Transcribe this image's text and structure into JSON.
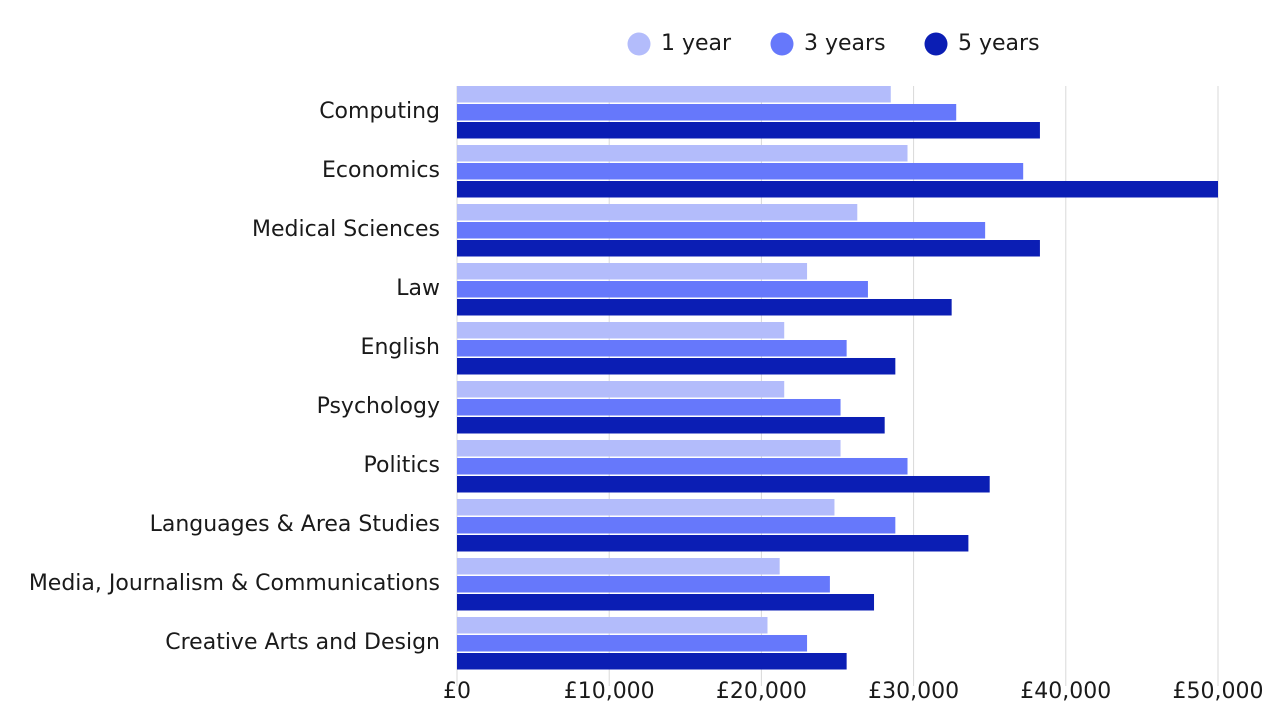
{
  "chart_data": {
    "type": "bar",
    "orientation": "horizontal",
    "title": "",
    "xlabel": "",
    "ylabel": "",
    "categories": [
      "Computing",
      "Economics",
      "Medical Sciences",
      "Law",
      "English",
      "Psychology",
      "Politics",
      "Languages & Area Studies",
      "Media, Journalism & Communications",
      "Creative Arts and Design"
    ],
    "series": [
      {
        "name": "1 year",
        "color": "#b3bcfb",
        "values": [
          28500,
          29600,
          26300,
          23000,
          21500,
          21500,
          25200,
          24800,
          21200,
          20400
        ]
      },
      {
        "name": "3 years",
        "color": "#6678fb",
        "values": [
          32800,
          37200,
          34700,
          27000,
          25600,
          25200,
          29600,
          28800,
          24500,
          23000
        ]
      },
      {
        "name": "5 years",
        "color": "#0b1eb4",
        "values": [
          38300,
          50000,
          38300,
          32500,
          28800,
          28100,
          35000,
          33600,
          27400,
          25600
        ]
      }
    ],
    "xlim": [
      0,
      50000
    ],
    "xticks": [
      0,
      10000,
      20000,
      30000,
      40000,
      50000
    ],
    "xtick_labels": [
      "£0",
      "£10,000",
      "£20,000",
      "£30,000",
      "£40,000",
      "£50,000"
    ],
    "grid": "vertical",
    "legend_position": "top-right"
  }
}
